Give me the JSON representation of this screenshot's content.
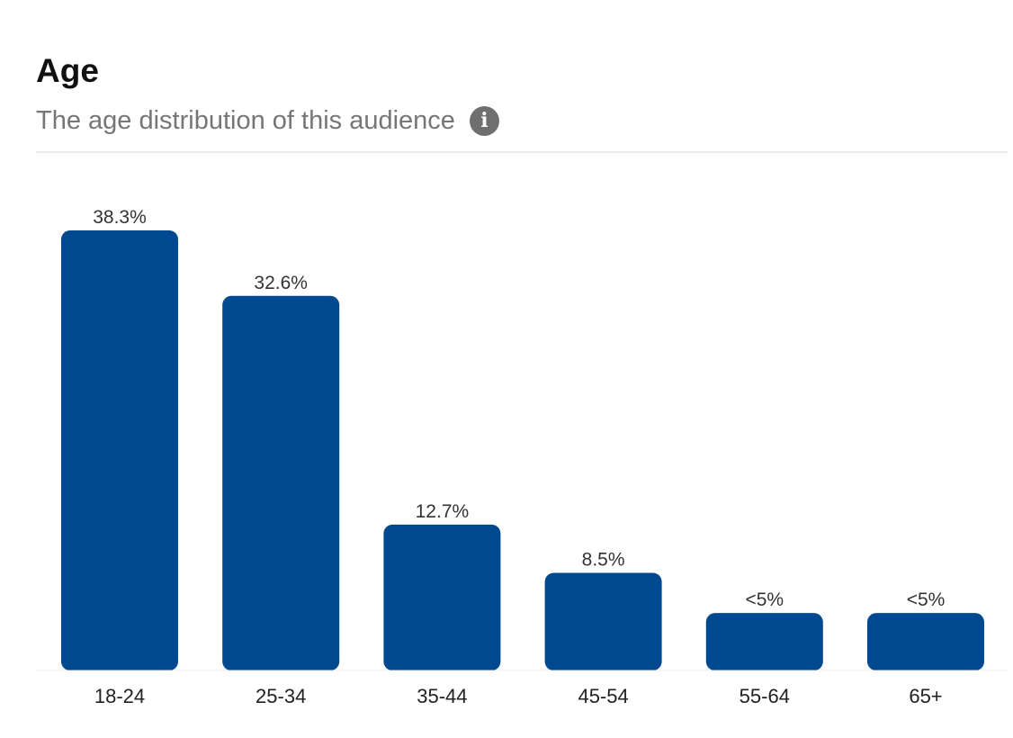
{
  "header": {
    "title": "Age",
    "subtitle": "The age distribution of this audience",
    "info_icon": "info-icon"
  },
  "colors": {
    "bar": "#004990",
    "axis": "#eeeeee"
  },
  "chart_data": {
    "type": "bar",
    "title": "Age",
    "subtitle": "The age distribution of this audience",
    "categories": [
      "18-24",
      "25-34",
      "35-44",
      "45-54",
      "55-64",
      "65+"
    ],
    "values": [
      38.3,
      32.6,
      12.7,
      8.5,
      5,
      5
    ],
    "value_labels": [
      "38.3%",
      "32.6%",
      "12.7%",
      "8.5%",
      "<5%",
      "<5%"
    ],
    "unit": "%",
    "ylim": [
      0,
      38.3
    ],
    "grid": false,
    "legend": "none"
  }
}
